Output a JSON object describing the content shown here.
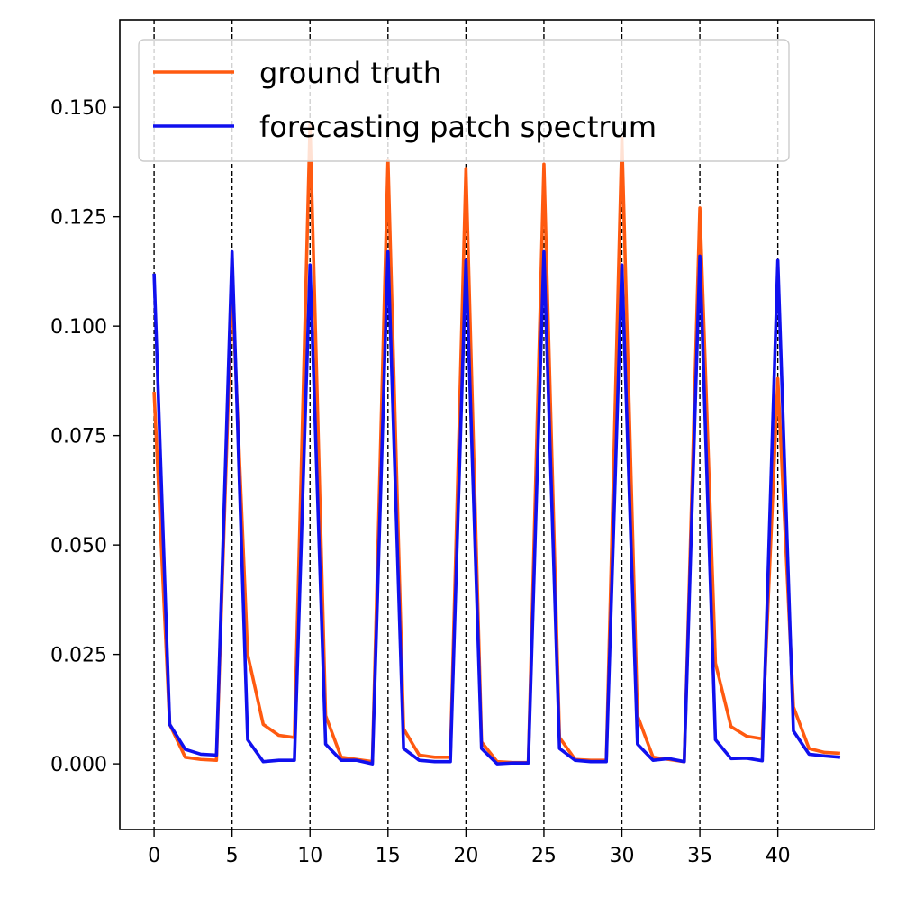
{
  "chart_data": {
    "type": "line",
    "title": "",
    "xlabel": "",
    "ylabel": "",
    "xlim": [
      -2.2,
      46.2
    ],
    "ylim": [
      -0.015,
      0.17
    ],
    "x_ticks": [
      0,
      5,
      10,
      15,
      20,
      25,
      30,
      35,
      40
    ],
    "x_tick_labels": [
      "0",
      "5",
      "10",
      "15",
      "20",
      "25",
      "30",
      "35",
      "40"
    ],
    "y_ticks": [
      0.0,
      0.025,
      0.05,
      0.075,
      0.1,
      0.125,
      0.15
    ],
    "y_tick_labels": [
      "0.000",
      "0.025",
      "0.050",
      "0.075",
      "0.100",
      "0.125",
      "0.150"
    ],
    "vlines": [
      0,
      5,
      10,
      15,
      20,
      25,
      30,
      35,
      40
    ],
    "legend_position": "top-left",
    "x": [
      0,
      1,
      2,
      3,
      4,
      5,
      6,
      7,
      8,
      9,
      10,
      11,
      12,
      13,
      14,
      15,
      16,
      17,
      18,
      19,
      20,
      21,
      22,
      23,
      24,
      25,
      26,
      27,
      28,
      29,
      30,
      31,
      32,
      33,
      34,
      35,
      36,
      37,
      38,
      39,
      40,
      41,
      42,
      43,
      44
    ],
    "series": [
      {
        "name": "ground truth",
        "color": "#ff5a10",
        "values": [
          0.085,
          0.009,
          0.0015,
          0.001,
          0.0008,
          0.11,
          0.025,
          0.009,
          0.0065,
          0.006,
          0.146,
          0.011,
          0.0015,
          0.001,
          0.0005,
          0.138,
          0.008,
          0.002,
          0.0015,
          0.0015,
          0.136,
          0.005,
          0.0005,
          0.0003,
          0.0003,
          0.137,
          0.006,
          0.001,
          0.0008,
          0.0008,
          0.143,
          0.011,
          0.0015,
          0.001,
          0.0005,
          0.127,
          0.023,
          0.0085,
          0.0063,
          0.0057,
          0.088,
          0.013,
          0.0035,
          0.0026,
          0.0024
        ]
      },
      {
        "name": "forecasting patch spectrum",
        "color": "#1010ee",
        "values": [
          0.112,
          0.009,
          0.0033,
          0.0022,
          0.002,
          0.117,
          0.0055,
          0.0005,
          0.0008,
          0.0008,
          0.114,
          0.0045,
          0.0008,
          0.0008,
          0.0,
          0.117,
          0.0035,
          0.0008,
          0.0005,
          0.0005,
          0.115,
          0.0035,
          0.0,
          0.0002,
          0.0002,
          0.117,
          0.0035,
          0.0008,
          0.0005,
          0.0005,
          0.114,
          0.0045,
          0.0008,
          0.0012,
          0.0005,
          0.116,
          0.0055,
          0.0012,
          0.0013,
          0.0007,
          0.115,
          0.0075,
          0.0022,
          0.0018,
          0.0015
        ]
      }
    ]
  }
}
